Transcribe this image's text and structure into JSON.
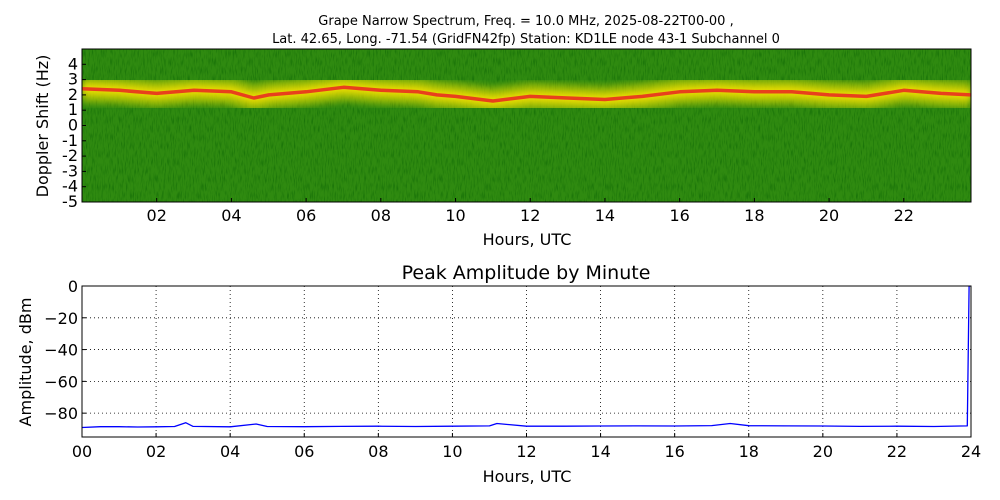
{
  "chart_data": [
    {
      "type": "heatmap",
      "title_line1": "Grape Narrow Spectrum, Freq. = 10.0 MHz, 2025-08-22T00-00 ,",
      "title_line2": "Lat.  42.65, Long. -71.54 (GridFN42fp) Station: KD1LE node 43-1 Subchannel 0",
      "xlabel": "Hours, UTC",
      "ylabel": "Doppler Shift (Hz)",
      "xlim": [
        0,
        23.8
      ],
      "ylim": [
        -5,
        5
      ],
      "x_ticks": [
        {
          "value": 2,
          "label": "02"
        },
        {
          "value": 4,
          "label": "04"
        },
        {
          "value": 6,
          "label": "06"
        },
        {
          "value": 8,
          "label": "08"
        },
        {
          "value": 10,
          "label": "10"
        },
        {
          "value": 12,
          "label": "12"
        },
        {
          "value": 14,
          "label": "14"
        },
        {
          "value": 16,
          "label": "16"
        },
        {
          "value": 18,
          "label": "18"
        },
        {
          "value": 20,
          "label": "20"
        },
        {
          "value": 22,
          "label": "22"
        }
      ],
      "y_ticks": [
        {
          "value": 4,
          "label": "4"
        },
        {
          "value": 3,
          "label": "3"
        },
        {
          "value": 2,
          "label": "2"
        },
        {
          "value": 1,
          "label": "1"
        },
        {
          "value": 0,
          "label": "0"
        },
        {
          "value": -1,
          "label": "-1"
        },
        {
          "value": -2,
          "label": "-2"
        },
        {
          "value": -3,
          "label": "-3"
        },
        {
          "value": -4,
          "label": "-4"
        },
        {
          "value": -5,
          "label": "-5"
        }
      ],
      "doppler_trace": {
        "x": [
          0,
          1,
          2,
          3,
          4,
          4.6,
          5,
          6,
          7,
          8,
          9,
          9.5,
          10,
          11,
          12,
          13,
          14,
          15,
          16,
          17,
          18,
          19,
          20,
          21,
          22,
          23,
          23.8
        ],
        "y": [
          2.4,
          2.3,
          2.1,
          2.3,
          2.2,
          1.8,
          2.0,
          2.2,
          2.5,
          2.3,
          2.2,
          2.0,
          1.9,
          1.6,
          1.9,
          1.8,
          1.7,
          1.9,
          2.2,
          2.3,
          2.2,
          2.2,
          2.0,
          1.9,
          2.3,
          2.1,
          2.0
        ]
      },
      "colors": {
        "background": "#2e8b0c",
        "mid": "#d8d800",
        "peak": "#e8401c"
      }
    },
    {
      "type": "line",
      "title": "Peak Amplitude by Minute",
      "xlabel": "Hours, UTC",
      "ylabel": "Amplitude, dBm",
      "xlim": [
        0,
        24
      ],
      "ylim": [
        -95,
        0
      ],
      "grid": true,
      "x_ticks": [
        "00",
        "02",
        "04",
        "06",
        "08",
        "10",
        "12",
        "14",
        "16",
        "18",
        "20",
        "22",
        "24"
      ],
      "y_ticks": [
        "0",
        "−20",
        "−40",
        "−60",
        "−80"
      ],
      "y_tick_values": [
        0,
        -20,
        -40,
        -60,
        -80
      ],
      "series": [
        {
          "color": "#0000ff",
          "x": [
            0,
            0.5,
            1,
            1.5,
            2,
            2.5,
            2.8,
            3,
            4,
            4.7,
            5,
            6,
            7,
            8,
            9,
            10,
            11,
            11.2,
            12,
            13,
            14,
            15,
            16,
            17,
            17.5,
            18,
            19,
            20,
            21,
            22,
            23,
            23.9,
            23.95,
            24
          ],
          "y": [
            -89,
            -88.5,
            -88.5,
            -88.7,
            -88.6,
            -88.4,
            -86,
            -88.3,
            -88.6,
            -86.8,
            -88.4,
            -88.5,
            -88.3,
            -88.2,
            -88.4,
            -88.2,
            -88.0,
            -86.5,
            -88.2,
            -88.2,
            -88.1,
            -88.0,
            -88.1,
            -87.8,
            -86.5,
            -87.9,
            -88.0,
            -88.1,
            -88.3,
            -88.2,
            -88.4,
            -88.0,
            0,
            0
          ]
        }
      ]
    }
  ]
}
